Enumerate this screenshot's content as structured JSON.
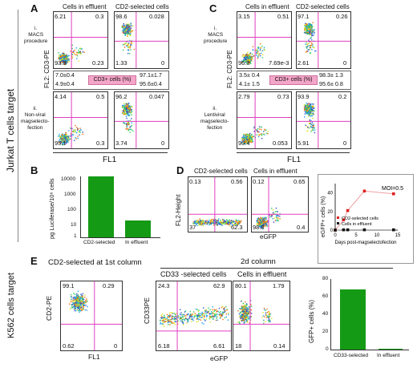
{
  "side_label": "Jurkat T cells target",
  "side_label_k562": "K562 cells target",
  "panelA": {
    "letter": "A",
    "col1": "Cells in effluent",
    "col2": "CD2-selected cells",
    "ylabel": "FL2: CD3-PE",
    "xlabel": "FL1",
    "row1_label": [
      "i.",
      "MACS",
      "procedure"
    ],
    "row2_label": [
      "ii.",
      "Non-viral",
      "magselecto-",
      "fection"
    ],
    "plots": [
      {
        "ul": "6.21",
        "ur": "0.3",
        "ll": "93.3",
        "lr": "0.23"
      },
      {
        "ul": "98.6",
        "ur": "0.028",
        "ll": "1.33",
        "lr": "0"
      },
      {
        "ul": "4.14",
        "ur": "0.5",
        "ll": "95.1",
        "lr": "0.3"
      },
      {
        "ul": "96.2",
        "ur": "0.047",
        "ll": "3.74",
        "lr": "0"
      }
    ],
    "stats": {
      "left": [
        "7.0±0.4",
        "4.9±0.4"
      ],
      "right": [
        "97.1±1.7",
        "95.6±0.4"
      ],
      "label": "CD3+ cells (%)"
    }
  },
  "panelC": {
    "letter": "C",
    "col1": "Cells in effluent",
    "col2": "CD2-selected cells",
    "ylabel": "FL2: CD3-PE",
    "xlabel": "FL1",
    "row1_label": [
      "i.",
      "MACS",
      "procedure"
    ],
    "row2_label": [
      "ii.",
      "Lentiviral",
      "magselecto-",
      "fection"
    ],
    "plots": [
      {
        "ul": "3.15",
        "ur": "0.51",
        "ll": "96.3",
        "lr": "7.69e-3"
      },
      {
        "ul": "97.1",
        "ur": "0.26",
        "ll": "2.61",
        "lr": "0"
      },
      {
        "ul": "2.79",
        "ur": "0.73",
        "ll": "96.4",
        "lr": "0.053"
      },
      {
        "ul": "93.9",
        "ur": "0.2",
        "ll": "5.91",
        "lr": "0"
      }
    ],
    "stats": {
      "left": [
        "3.5± 0.4",
        "4.1± 1.5"
      ],
      "right": [
        "98.3± 1.3",
        "95.6± 0.8"
      ],
      "label": "CD3+ cells (%)"
    }
  },
  "panelB": {
    "letter": "B",
    "ylabel": "pg Luciferase/10⁶ cells",
    "ticks": [
      "10000",
      "1000",
      "100",
      "10",
      "1"
    ],
    "categories": [
      "CD2-selected",
      "In effluent"
    ]
  },
  "panelD": {
    "letter": "D",
    "col1": "CD2-selected cells",
    "col2": "Cells in effluent",
    "ylabel": "FL2-Height",
    "xlabel": "eGFP",
    "plots": [
      {
        "ul": "0.13",
        "ur": "0.56",
        "ll": "37",
        "lr": "62.3"
      },
      {
        "ul": "0.12",
        "ur": "0.65",
        "ll": "98.8",
        "lr": "0.4"
      }
    ],
    "line": {
      "ylabel": "eGFP+ cells (%)",
      "xlabel": "Days post-magselectofection",
      "moi": "MOI=0.5",
      "yticks": [
        "40",
        "20",
        "0"
      ],
      "xticks": [
        "0",
        "5",
        "10",
        "15"
      ],
      "legend": [
        "CD2-selected cells",
        "Cells in effluent"
      ]
    }
  },
  "panelE": {
    "letter": "E",
    "header1": "CD2-selected at 1st column",
    "header2": "2d column",
    "col2": "CD33 -selected cells",
    "col3": "Cells in effluent",
    "ylabel1": "CD2-PE",
    "xlabel1": "FL1",
    "ylabel2": "CD33PE",
    "xlabel2": "eGFP",
    "plots": [
      {
        "ul": "99.1",
        "ur": "0.29",
        "ll": "0.62",
        "lr": "0"
      },
      {
        "ul": "24.3",
        "ur": "62.9",
        "ll": "6.18",
        "lr": "6.61"
      },
      {
        "ul": "80.1",
        "ur": "1.79",
        "ll": "18",
        "lr": "0.14"
      }
    ],
    "bar": {
      "ylabel": "GFP+ cells (%)",
      "yticks": [
        "80",
        "60",
        "40",
        "20",
        "0"
      ],
      "categories": [
        "CD33-selected",
        "In effluent"
      ]
    }
  },
  "chart_data": [
    {
      "type": "bar",
      "title": "",
      "categories": [
        "CD2-selected",
        "In effluent"
      ],
      "values": [
        15000,
        13
      ],
      "ylabel": "pg Luciferase/10⁶ cells",
      "log_scale": true,
      "ylim": [
        1,
        20000
      ]
    },
    {
      "type": "line",
      "title": "",
      "ylabel": "eGFP+ cells (%)",
      "xlabel": "Days post-magselectofection",
      "xlim": [
        0,
        15
      ],
      "ylim": [
        0,
        50
      ],
      "series": [
        {
          "name": "CD2-selected cells",
          "x": [
            0,
            2,
            3,
            7,
            14
          ],
          "y": [
            0,
            11,
            21,
            42,
            39
          ]
        },
        {
          "name": "Cells in effluent",
          "x": [
            0,
            2,
            3,
            7,
            14
          ],
          "y": [
            0,
            0.3,
            0.3,
            0.3,
            0.3
          ]
        }
      ]
    },
    {
      "type": "bar",
      "title": "",
      "categories": [
        "CD33-selected",
        "In effluent"
      ],
      "values": [
        68,
        1
      ],
      "ylabel": "GFP+ cells (%)",
      "ylim": [
        0,
        80
      ]
    }
  ]
}
